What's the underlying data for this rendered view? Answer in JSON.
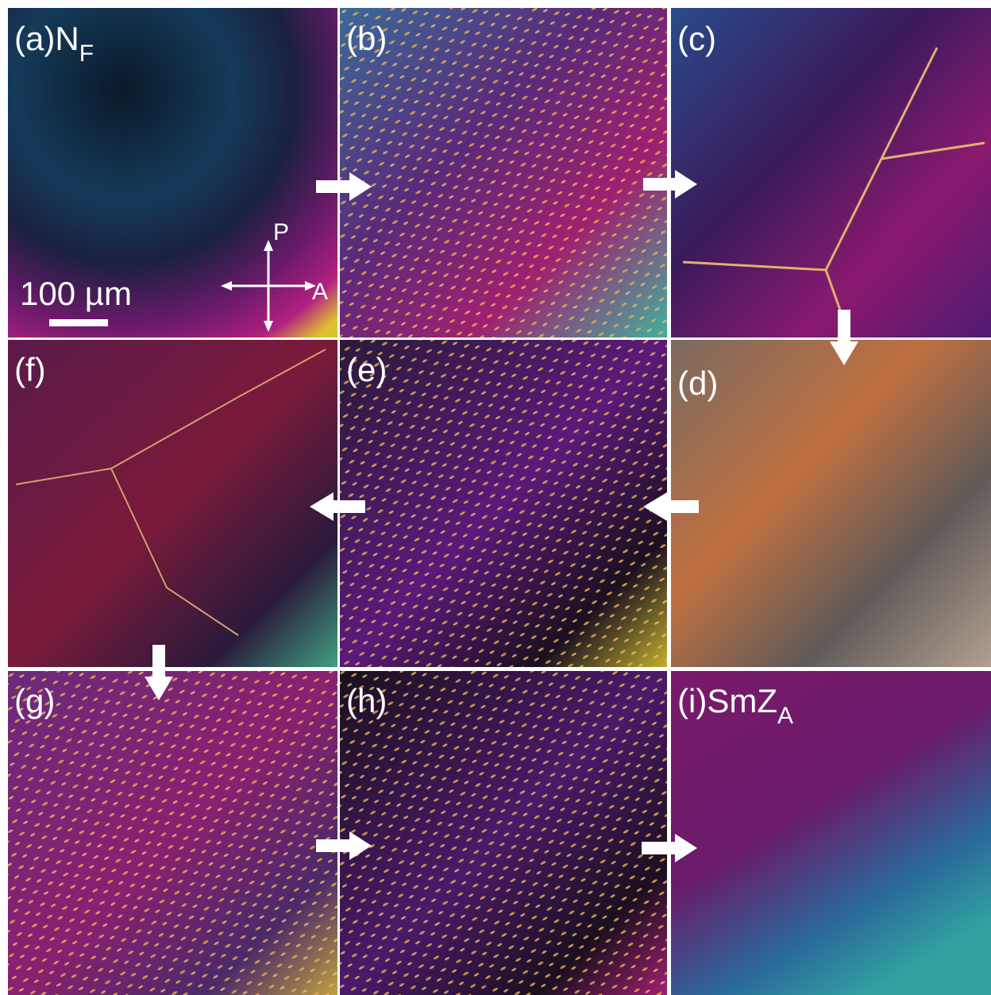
{
  "panels": [
    {
      "label": "(a)",
      "phase": "N",
      "phase_sub": "F"
    },
    {
      "label": "(b)"
    },
    {
      "label": "(c)"
    },
    {
      "label": "(f)"
    },
    {
      "label": "(e)"
    },
    {
      "label": "(d)"
    },
    {
      "label": "(g)"
    },
    {
      "label": "(h)"
    },
    {
      "label": "(i)",
      "phase": "SmZ",
      "phase_sub": "A"
    }
  ],
  "scale_bar": "100 µm",
  "polarizer": "P",
  "analyzer": "A"
}
